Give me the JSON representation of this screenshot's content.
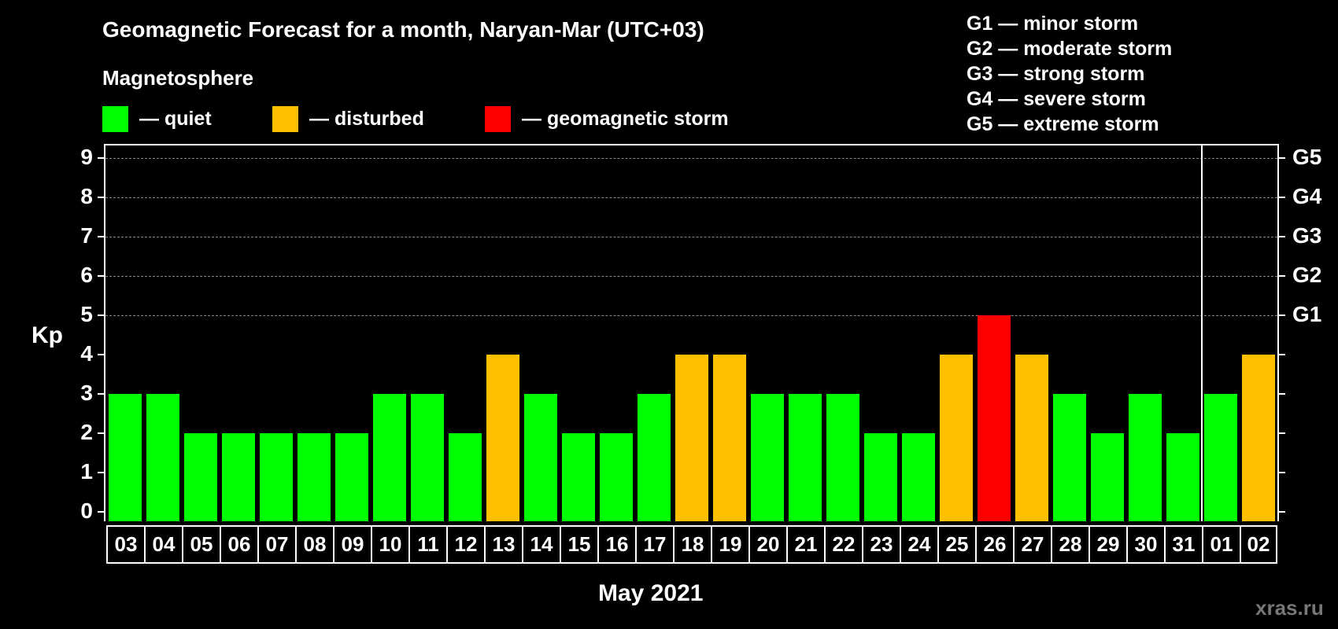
{
  "title": "Geomagnetic Forecast for a month, Naryan-Mar (UTC+03)",
  "subtitle": "Magnetosphere",
  "legend": [
    {
      "label": "— quiet",
      "color": "#00ff00"
    },
    {
      "label": "— disturbed",
      "color": "#ffc000"
    },
    {
      "label": "— geomagnetic storm",
      "color": "#ff0000"
    }
  ],
  "g_scale": [
    "G1 — minor storm",
    "G2 — moderate storm",
    "G3 — strong storm",
    "G4 — severe storm",
    "G5 — extreme storm"
  ],
  "y_axis_label": "Kp",
  "x_axis_label": "May 2021",
  "watermark": "xras.ru",
  "chart_data": {
    "type": "bar",
    "title": "Geomagnetic Forecast for a month, Naryan-Mar (UTC+03)",
    "xlabel": "May 2021",
    "ylabel": "Kp",
    "ylim": [
      0,
      9
    ],
    "yticks": [
      0,
      1,
      2,
      3,
      4,
      5,
      6,
      7,
      8,
      9
    ],
    "right_ticks": {
      "5": "G1",
      "6": "G2",
      "7": "G3",
      "8": "G4",
      "9": "G5"
    },
    "grid": "dashed horizontal at Kp 5-9",
    "categories": [
      "03",
      "04",
      "05",
      "06",
      "07",
      "08",
      "09",
      "10",
      "11",
      "12",
      "13",
      "14",
      "15",
      "16",
      "17",
      "18",
      "19",
      "20",
      "21",
      "22",
      "23",
      "24",
      "25",
      "26",
      "27",
      "28",
      "29",
      "30",
      "31",
      "01",
      "02"
    ],
    "values": [
      3,
      3,
      2,
      2,
      2,
      2,
      2,
      3,
      3,
      2,
      4,
      3,
      2,
      2,
      3,
      4,
      4,
      3,
      3,
      3,
      2,
      2,
      4,
      5,
      4,
      3,
      2,
      3,
      2,
      3,
      4
    ],
    "status": [
      "quiet",
      "quiet",
      "quiet",
      "quiet",
      "quiet",
      "quiet",
      "quiet",
      "quiet",
      "quiet",
      "quiet",
      "disturbed",
      "quiet",
      "quiet",
      "quiet",
      "quiet",
      "disturbed",
      "disturbed",
      "quiet",
      "quiet",
      "quiet",
      "quiet",
      "quiet",
      "disturbed",
      "storm",
      "disturbed",
      "quiet",
      "quiet",
      "quiet",
      "quiet",
      "quiet",
      "disturbed"
    ],
    "colors": {
      "quiet": "#00ff00",
      "disturbed": "#ffc000",
      "storm": "#ff0000"
    },
    "month_divider_after": "31",
    "legend_position": "top"
  }
}
